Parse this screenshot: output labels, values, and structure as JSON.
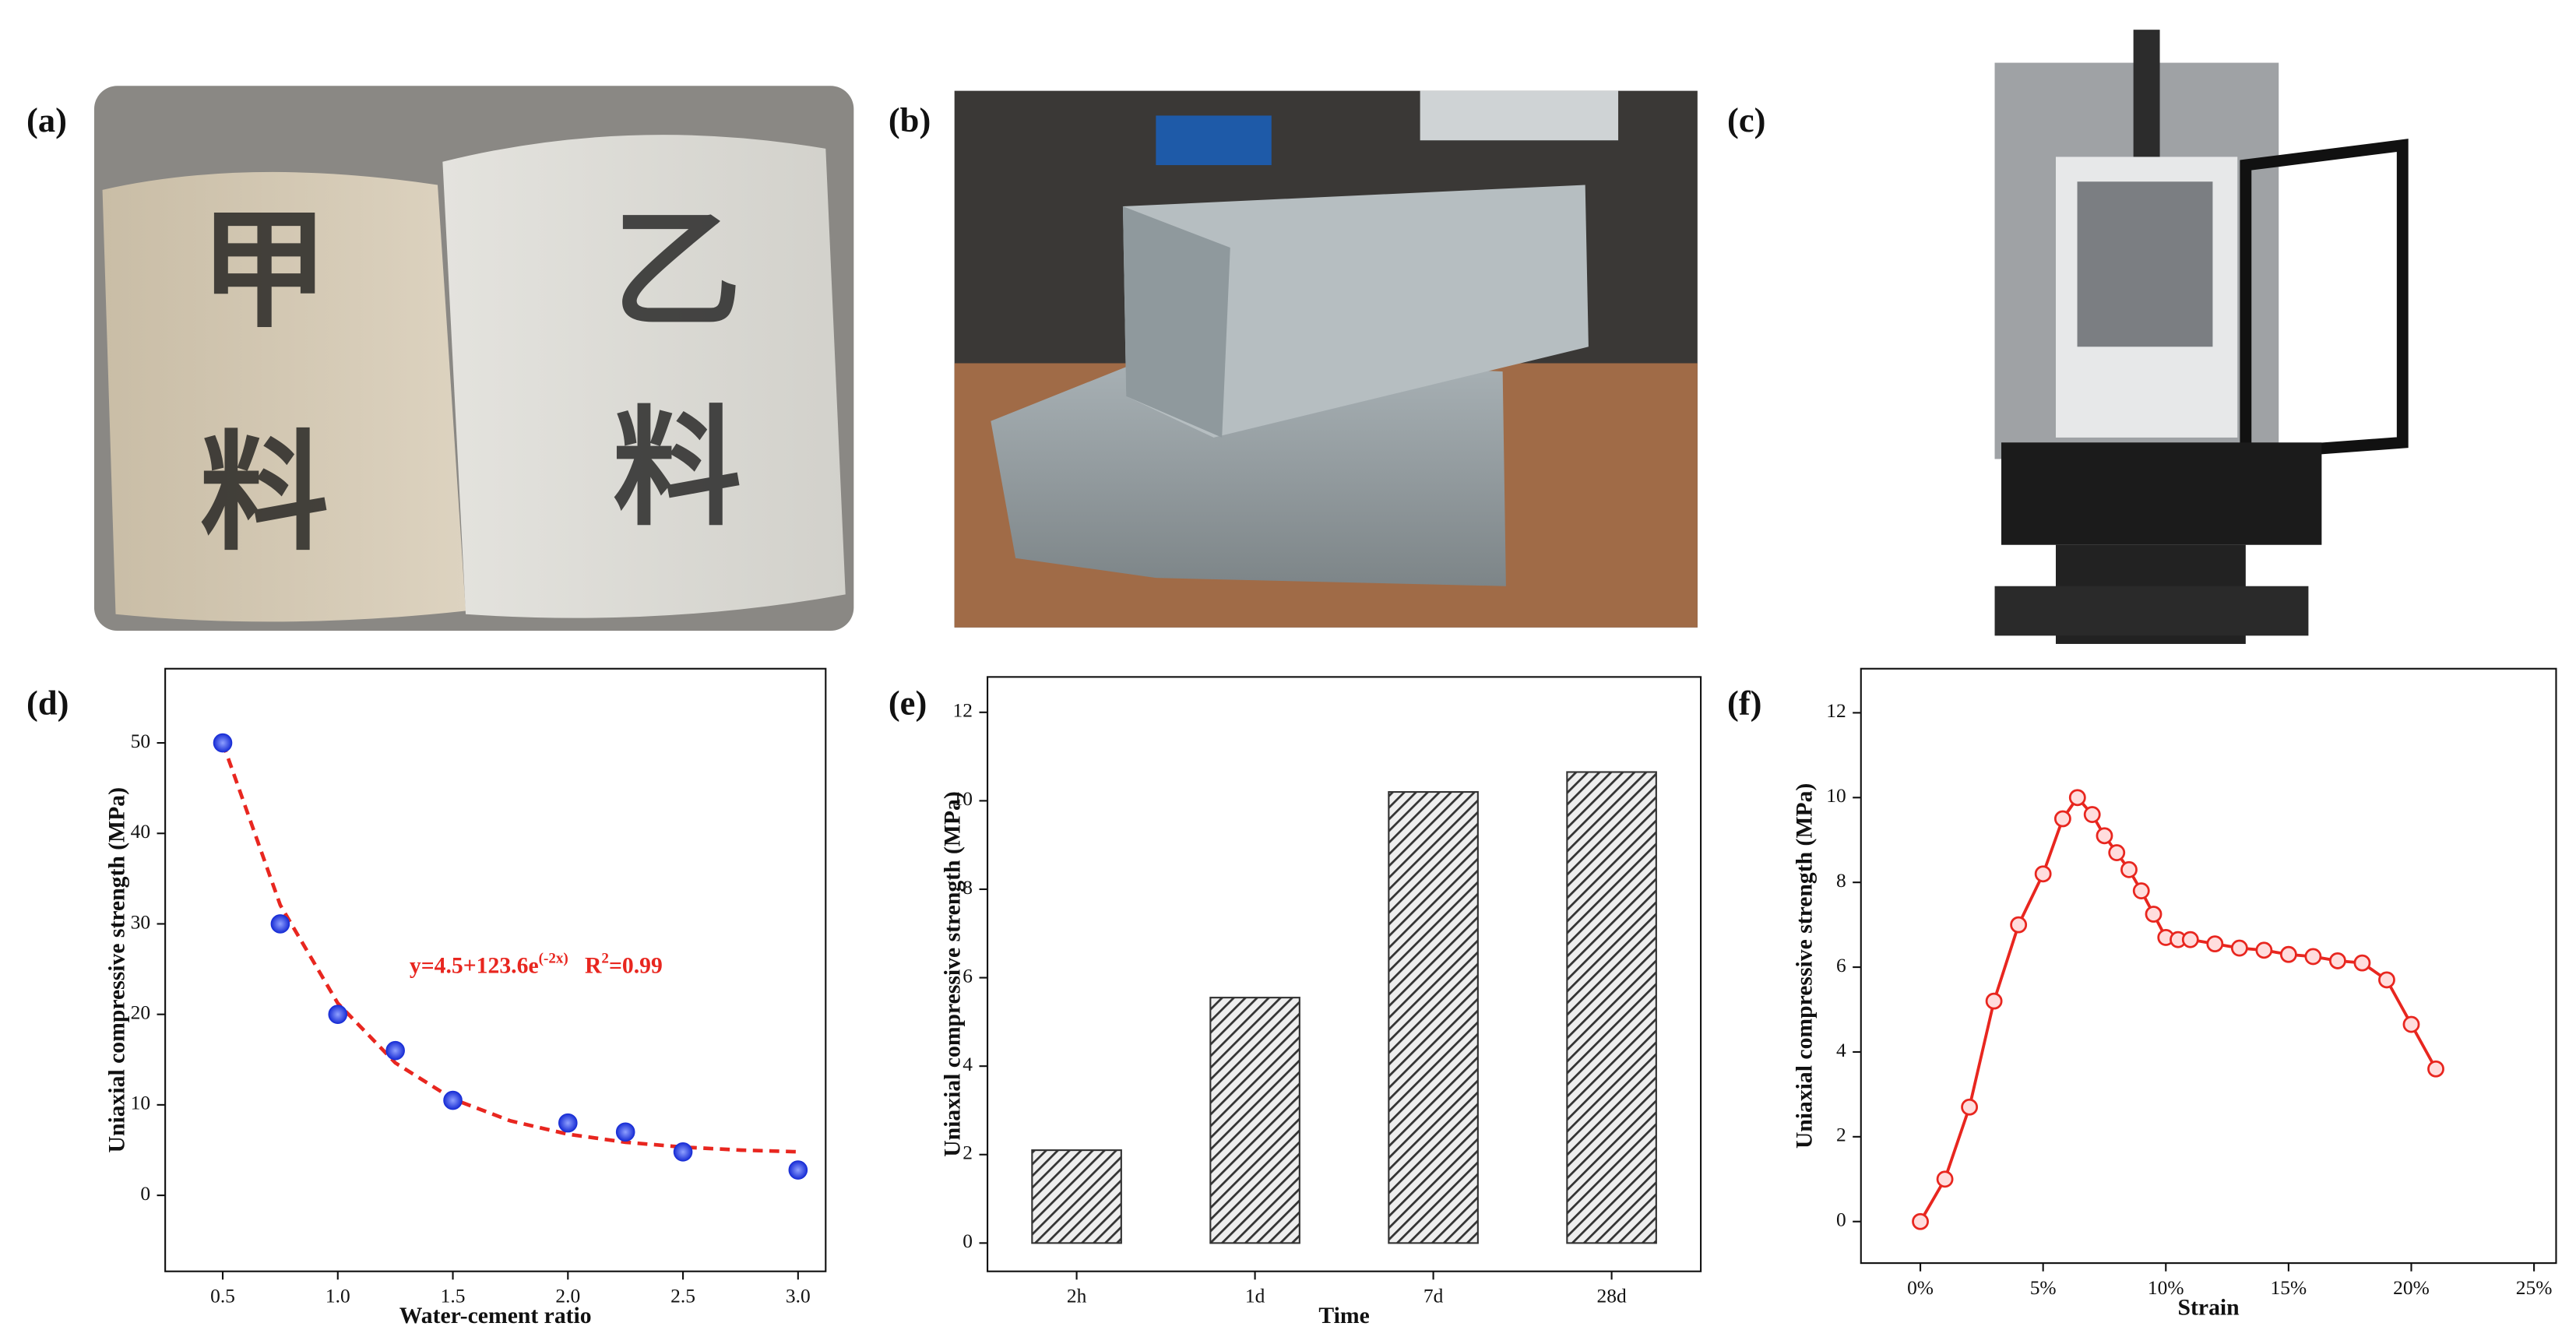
{
  "panel_labels": [
    "(a)",
    "(b)",
    "(c)",
    "(d)",
    "(e)",
    "(f)"
  ],
  "photo_text": [
    "甲",
    "料",
    "乙",
    "料"
  ],
  "chart_data": [
    {
      "type": "scatter",
      "xlabel": "Water-cement ratio",
      "ylabel": "Uniaxial compressive strength (MPa)",
      "x": [
        0.5,
        0.75,
        1.0,
        1.25,
        1.5,
        2.0,
        2.25,
        2.5,
        3.0
      ],
      "values": [
        50,
        30,
        20,
        16,
        10.5,
        8,
        7,
        4.8,
        2.8
      ],
      "color": "#1a2fd6",
      "fit": {
        "x": [
          0.5,
          0.75,
          1.0,
          1.25,
          1.5,
          1.75,
          2.0,
          2.25,
          2.5,
          2.75,
          3.0
        ],
        "values": [
          50.0,
          32.08,
          21.23,
          14.64,
          10.65,
          8.23,
          6.76,
          5.87,
          5.33,
          5.0,
          4.81
        ],
        "color": "#e8261f"
      },
      "annotation": {
        "text": "y=4.5+123.6e",
        "sup": "(-2x)",
        "r2": "R",
        "r2_sup": "2",
        "r2_value": "=0.99",
        "color": "#e8261f"
      },
      "xlim": [
        0.25,
        3.12
      ],
      "ylim": [
        -8.4,
        58.2
      ],
      "xticks": [
        0.5,
        {
          "value": 1,
          "label": "1.0"
        },
        1.5,
        {
          "value": 2,
          "label": "2.0"
        },
        2.5,
        {
          "value": 3,
          "label": "3.0"
        }
      ],
      "yticks": [
        0,
        10,
        20,
        30,
        40,
        50
      ]
    },
    {
      "type": "bar",
      "xlabel": "Time",
      "ylabel": "Uniaxial compressive strength (MPa)",
      "categories": [
        "2h",
        "1d",
        "7d",
        "28d"
      ],
      "values": [
        2.1,
        5.55,
        10.2,
        10.65
      ],
      "color": "#333333",
      "ylim": [
        -0.64,
        12.8
      ],
      "yticks": [
        0,
        2,
        4,
        6,
        8,
        10,
        12
      ]
    },
    {
      "type": "line",
      "xlabel": "Strain",
      "ylabel": "Uniaxial compressive strength (MPa)",
      "x": [
        0,
        1,
        2,
        3,
        4,
        5,
        5.8,
        6.4,
        7,
        7.5,
        8,
        8.5,
        9,
        9.5,
        10,
        10.5,
        11,
        12,
        13,
        14,
        15,
        16,
        17,
        18,
        19,
        20,
        21
      ],
      "values": [
        0,
        1,
        2.7,
        5.2,
        7,
        8.2,
        9.5,
        10,
        9.6,
        9.1,
        8.7,
        8.3,
        7.8,
        7.25,
        6.7,
        6.65,
        6.65,
        6.55,
        6.45,
        6.4,
        6.3,
        6.25,
        6.15,
        6.1,
        5.7,
        4.65,
        3.6
      ],
      "color": "#e8261f",
      "xlim": [
        -2.42,
        25.9
      ],
      "ylim": [
        -0.98,
        13.04
      ],
      "xticks": [
        {
          "value": 0,
          "label": "0%"
        },
        {
          "value": 5,
          "label": "5%"
        },
        {
          "value": 10,
          "label": "10%"
        },
        {
          "value": 15,
          "label": "15%"
        },
        {
          "value": 20,
          "label": "20%"
        },
        {
          "value": 25,
          "label": "25%"
        }
      ],
      "yticks": [
        0,
        2,
        4,
        6,
        8,
        10,
        12
      ]
    }
  ]
}
